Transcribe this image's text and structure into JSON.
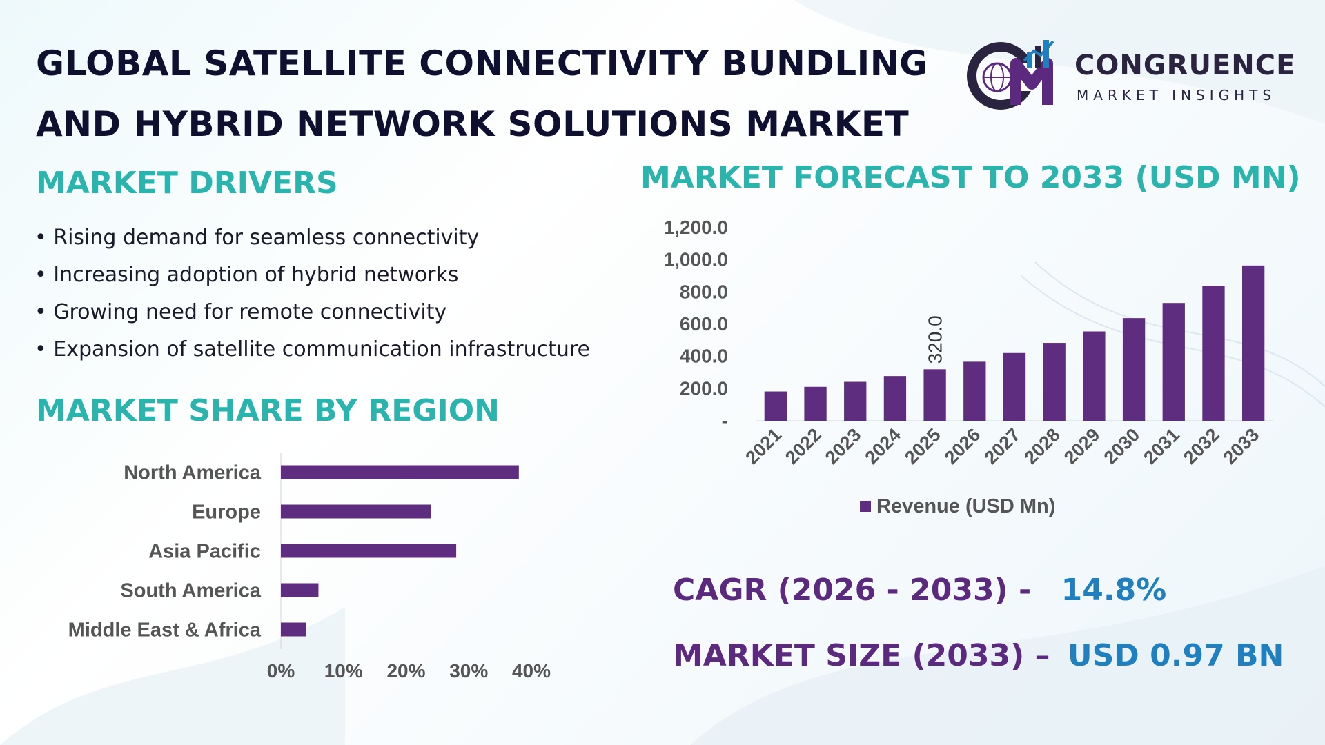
{
  "title": {
    "line1": "GLOBAL SATELLITE CONNECTIVITY BUNDLING",
    "line2": "AND HYBRID NETWORK SOLUTIONS MARKET"
  },
  "logo": {
    "brand": "CONGRUENCE",
    "subtitle": "MARKET INSIGHTS",
    "mark_colors": [
      "#2b2440",
      "#5b2a7e",
      "#1f7fbf"
    ]
  },
  "drivers": {
    "heading": "MARKET DRIVERS",
    "items": [
      "Rising demand for seamless connectivity",
      "Increasing adoption of hybrid networks",
      "Growing need for remote connectivity",
      "Expansion of satellite communication infrastructure"
    ]
  },
  "region_section": {
    "heading": "MARKET SHARE BY REGION"
  },
  "forecast_section": {
    "heading": "MARKET FORECAST TO 2033 (USD MN)"
  },
  "kpis": {
    "cagr_label": "CAGR (2026 - 2033) -",
    "cagr_value": "14.8%",
    "size_label": "MARKET SIZE (2033) –",
    "size_value": "USD 0.97 BN"
  },
  "colors": {
    "bar": "#5e2d7f",
    "heading": "#2bb3ad",
    "kpi_label": "#5b2a7e",
    "kpi_value": "#1f7fbf",
    "axis_text": "#555555"
  },
  "chart_data": [
    {
      "type": "bar",
      "orientation": "vertical",
      "categories": [
        "2021",
        "2022",
        "2023",
        "2024",
        "2025",
        "2026",
        "2027",
        "2028",
        "2029",
        "2030",
        "2031",
        "2032",
        "2033"
      ],
      "series": [
        {
          "name": "Revenue (USD Mn)",
          "values": [
            182,
            211,
            242,
            278,
            320,
            367,
            421,
            484,
            555,
            638,
            732,
            840,
            965
          ]
        }
      ],
      "data_labels": [
        {
          "category": "2025",
          "text": "320.0"
        }
      ],
      "y_ticks": [
        "-",
        "200.0",
        "400.0",
        "600.0",
        "800.0",
        "1,000.0",
        "1,200.0"
      ],
      "ylim": [
        0,
        1200
      ],
      "legend": "bottom",
      "grid": false
    },
    {
      "type": "bar",
      "orientation": "horizontal",
      "categories": [
        "North America",
        "Europe",
        "Asia Pacific",
        "South America",
        "Middle East & Africa"
      ],
      "values": [
        38,
        24,
        28,
        6,
        4
      ],
      "x_ticks": [
        "0%",
        "10%",
        "20%",
        "30%",
        "40%"
      ],
      "xlim": [
        0,
        40
      ],
      "grid": false
    }
  ]
}
